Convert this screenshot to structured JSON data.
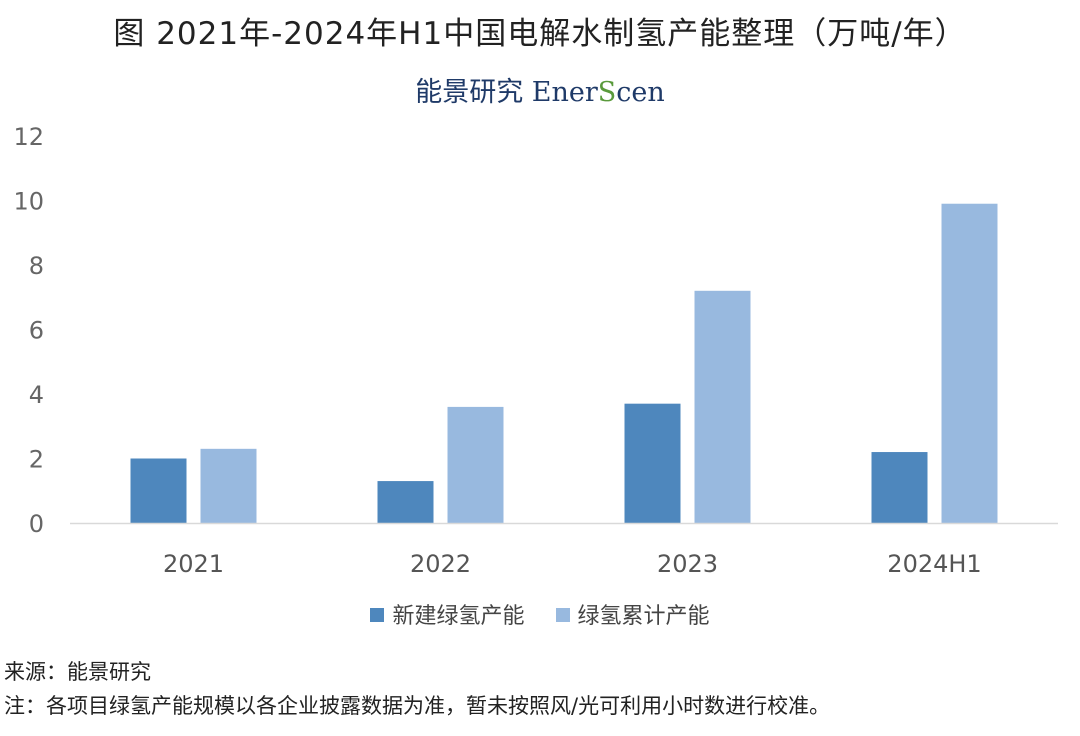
{
  "title": "图  2021年-2024年H1中国电解水制氢产能整理（万吨/年）",
  "brand": {
    "cn": "能景研究",
    "en_pre": "Ener",
    "en_s": "S",
    "en_post": "cen"
  },
  "chart_data": {
    "type": "bar",
    "categories": [
      "2021",
      "2022",
      "2023",
      "2024H1"
    ],
    "series": [
      {
        "name": "新建绿氢产能",
        "values": [
          2.0,
          1.3,
          3.7,
          2.2
        ],
        "color": "#4e87bd"
      },
      {
        "name": "绿氢累计产能",
        "values": [
          2.3,
          3.6,
          7.2,
          9.9
        ],
        "color": "#98b9df"
      }
    ],
    "ylim": [
      0,
      12
    ],
    "yticks": [
      0,
      2,
      4,
      6,
      8,
      10,
      12
    ],
    "grid": false,
    "legend": "bottom"
  },
  "footer": {
    "source": "来源：能景研究",
    "note": "注：各项目绿氢产能规模以各企业披露数据为准，暂未按照风/光可利用小时数进行校准。"
  }
}
